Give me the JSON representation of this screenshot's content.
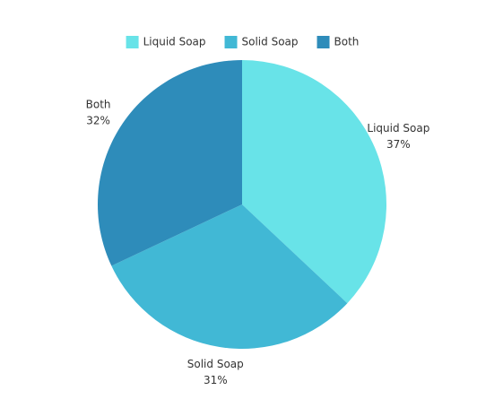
{
  "chart_data": {
    "type": "pie",
    "categories": [
      "Liquid Soap",
      "Solid Soap",
      "Both"
    ],
    "values": [
      37,
      31,
      32
    ],
    "value_labels": [
      "37%",
      "31%",
      "32%"
    ],
    "colors": [
      "#68e3e8",
      "#41b8d5",
      "#2e8cba"
    ],
    "legend": "top"
  }
}
